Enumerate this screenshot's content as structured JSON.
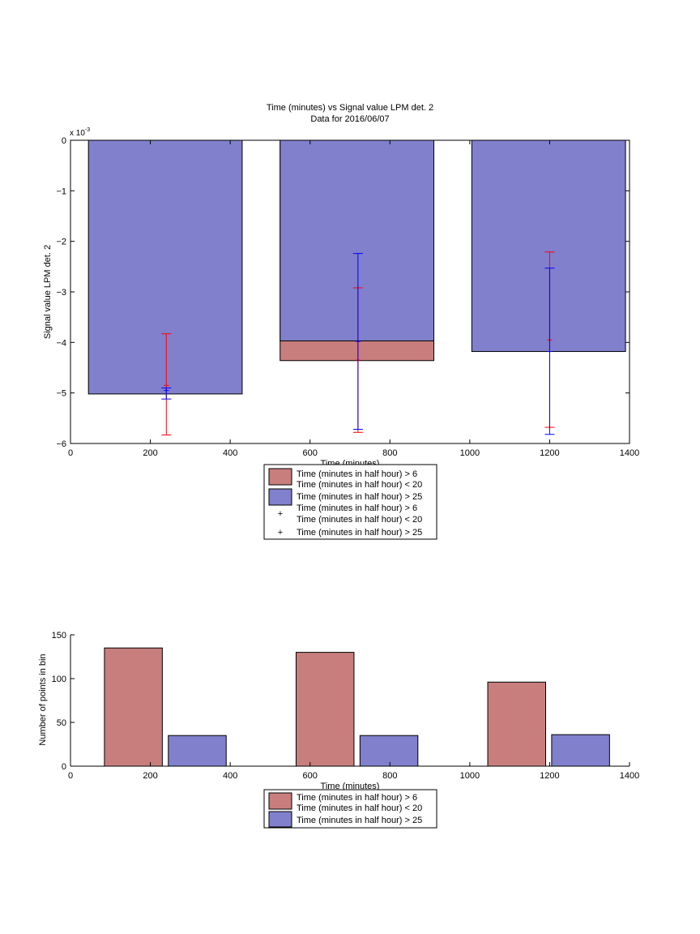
{
  "chart_data": [
    {
      "type": "bar",
      "title": "Time (minutes) vs Signal value LPM det. 2",
      "subtitle": "Data for 2016/06/07",
      "xlabel": "Time (minutes)",
      "ylabel": "Signal value LPM det. 2",
      "y_exponent_label": "x 10",
      "y_exponent_power": "-3",
      "xlim": [
        0,
        1400
      ],
      "ylim": [
        -6,
        0
      ],
      "xticks": [
        "0",
        "200",
        "400",
        "600",
        "800",
        "1000",
        "1200",
        "1400"
      ],
      "yticks": [
        "0",
        "−1",
        "−2",
        "−3",
        "−4",
        "−5",
        "−6"
      ],
      "grid": false,
      "legend_position": "below",
      "bars": [
        {
          "x_start": 45,
          "x_end": 430,
          "red_value": -5.02,
          "blue_value": -5.02
        },
        {
          "x_start": 525,
          "x_end": 910,
          "red_value": -4.36,
          "blue_value": -3.97
        },
        {
          "x_start": 1005,
          "x_end": 1390,
          "red_value": -4.18,
          "blue_value": -4.18
        }
      ],
      "errorbars": [
        {
          "series": "red",
          "x": 240,
          "low": -5.83,
          "high": -3.83,
          "center": -4.85
        },
        {
          "series": "blue",
          "x": 240,
          "low": -5.12,
          "high": -4.9,
          "center": -4.95
        },
        {
          "series": "red",
          "x": 720,
          "low": -5.78,
          "high": -2.92,
          "center": -4.35
        },
        {
          "series": "blue",
          "x": 720,
          "low": -5.72,
          "high": -2.24,
          "center": -3.98
        },
        {
          "series": "red",
          "x": 1200,
          "low": -5.68,
          "high": -2.21,
          "center": -3.95
        },
        {
          "series": "blue",
          "x": 1200,
          "low": -5.82,
          "high": -2.53,
          "center": -4.18
        }
      ],
      "legend": [
        {
          "kind": "patch",
          "color": "red",
          "lines": [
            "Time (minutes in half hour) > 6",
            "Time (minutes in half hour) < 20"
          ]
        },
        {
          "kind": "patch",
          "color": "blue",
          "lines": [
            "Time (minutes in half hour) > 25"
          ]
        },
        {
          "kind": "marker",
          "color": "red",
          "lines": [
            "Time (minutes in half hour) > 6",
            "Time (minutes in half hour) < 20"
          ]
        },
        {
          "kind": "marker",
          "color": "blue",
          "lines": [
            "Time (minutes in half hour) > 25"
          ]
        }
      ]
    },
    {
      "type": "bar",
      "xlabel": "Time (minutes)",
      "ylabel": "Number of points in bin",
      "xlim": [
        0,
        1400
      ],
      "ylim": [
        0,
        150
      ],
      "xticks": [
        "0",
        "200",
        "400",
        "600",
        "800",
        "1000",
        "1200",
        "1400"
      ],
      "yticks": [
        "0",
        "50",
        "100",
        "150"
      ],
      "grid": false,
      "legend_position": "below",
      "bars": [
        {
          "series": "red",
          "x_start": 85,
          "x_end": 230,
          "value": 135
        },
        {
          "series": "blue",
          "x_start": 245,
          "x_end": 390,
          "value": 35
        },
        {
          "series": "red",
          "x_start": 565,
          "x_end": 710,
          "value": 130
        },
        {
          "series": "blue",
          "x_start": 725,
          "x_end": 870,
          "value": 35
        },
        {
          "series": "red",
          "x_start": 1045,
          "x_end": 1190,
          "value": 96
        },
        {
          "series": "blue",
          "x_start": 1205,
          "x_end": 1350,
          "value": 36
        }
      ],
      "legend": [
        {
          "kind": "patch",
          "color": "red",
          "lines": [
            "Time (minutes in half hour) > 6",
            "Time (minutes in half hour) < 20"
          ]
        },
        {
          "kind": "patch",
          "color": "blue",
          "lines": [
            "Time (minutes in half hour) > 25"
          ]
        }
      ]
    }
  ],
  "colors": {
    "red_fill": "#c97e7e",
    "blue_fill": "#8080cc",
    "red_line": "#ff0000",
    "blue_line": "#0000ff",
    "axis": "#000000"
  }
}
